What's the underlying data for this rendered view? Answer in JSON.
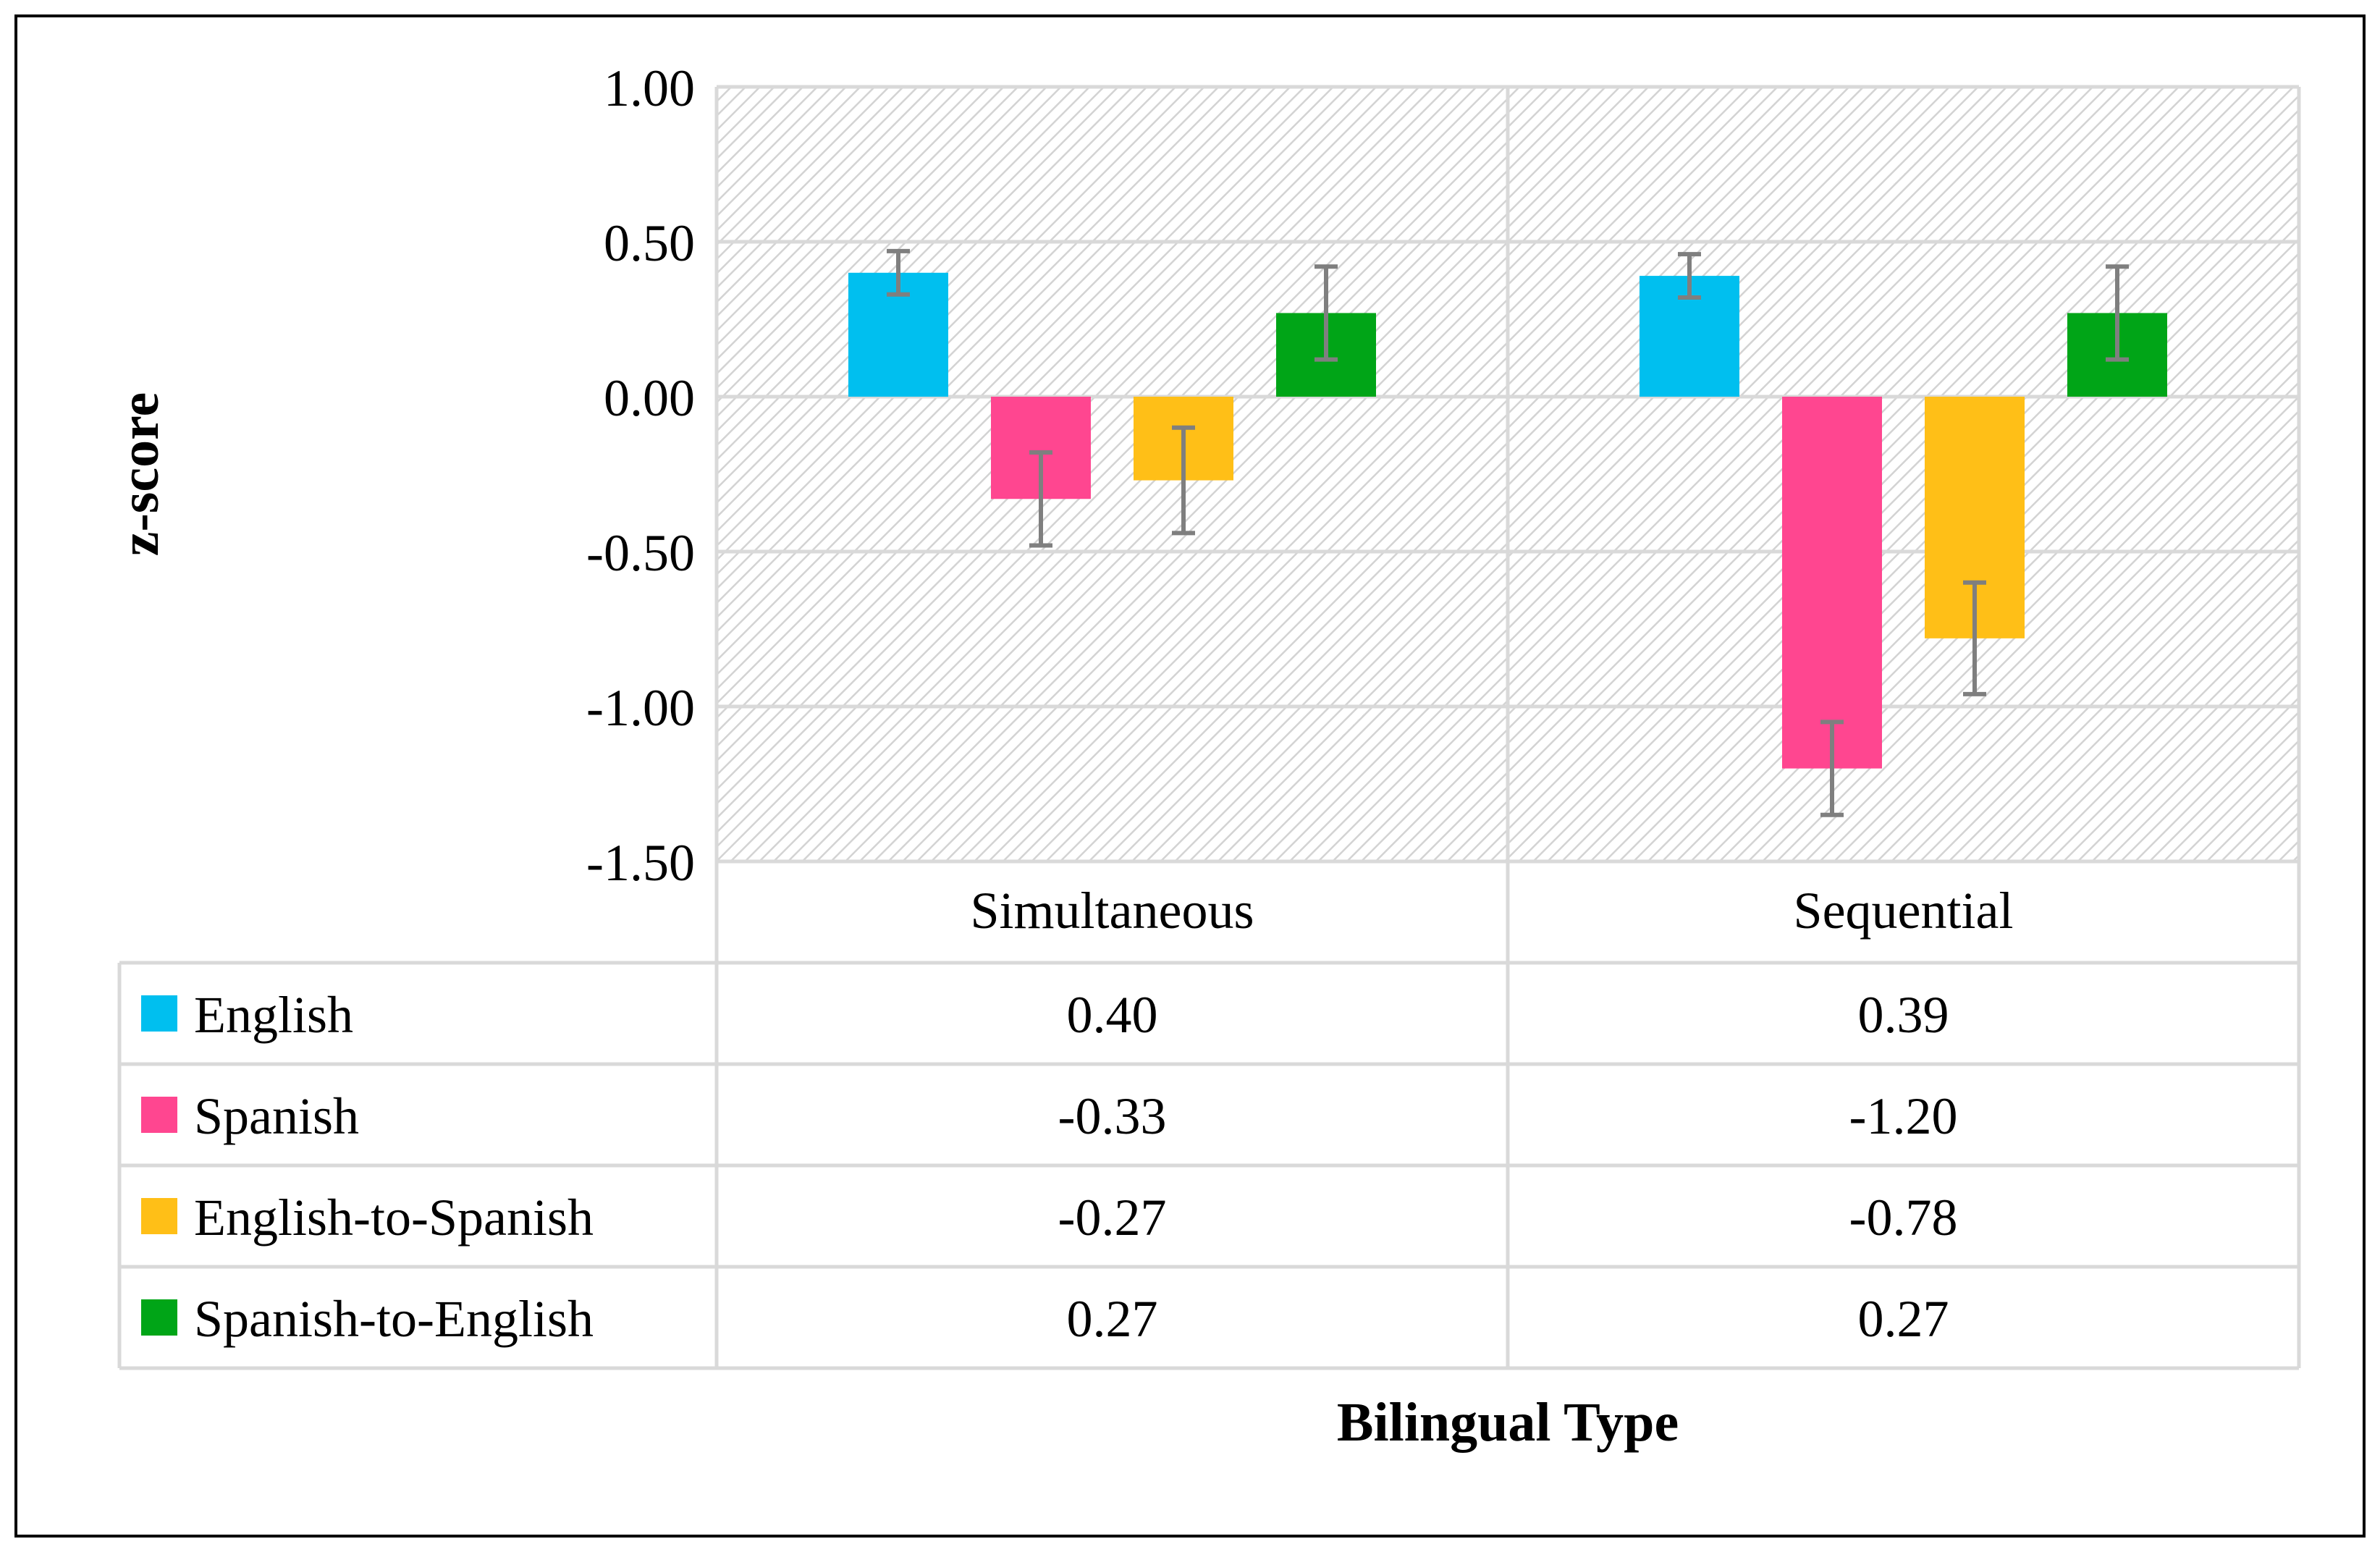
{
  "chart_data": {
    "type": "bar",
    "title": "",
    "xlabel": "Bilingual Type",
    "ylabel": "z-score",
    "ylim": [
      -1.5,
      1.0
    ],
    "yticks": [
      1.0,
      0.5,
      0.0,
      -0.5,
      -1.0,
      -1.5
    ],
    "ytick_labels": [
      "1.00",
      "0.50",
      "0.00",
      "-0.50",
      "-1.00",
      "-1.50"
    ],
    "categories": [
      "Simultaneous",
      "Sequential"
    ],
    "grid": true,
    "legend": "data-table",
    "series": [
      {
        "name": "English",
        "color": "#00BFEF",
        "values": [
          0.4,
          0.39
        ],
        "value_labels": [
          "0.40",
          "0.39"
        ],
        "error": [
          0.07,
          0.07
        ]
      },
      {
        "name": "Spanish",
        "color": "#FF4690",
        "values": [
          -0.33,
          -1.2
        ],
        "value_labels": [
          "-0.33",
          "-1.20"
        ],
        "error": [
          0.15,
          0.15
        ]
      },
      {
        "name": "English-to-Spanish",
        "color": "#FFBF17",
        "values": [
          -0.27,
          -0.78
        ],
        "value_labels": [
          "-0.27",
          "-0.78"
        ],
        "error": [
          0.17,
          0.18
        ]
      },
      {
        "name": "Spanish-to-English",
        "color": "#00A517",
        "values": [
          0.27,
          0.27
        ],
        "value_labels": [
          "0.27",
          "0.27"
        ],
        "error": [
          0.15,
          0.15
        ]
      }
    ]
  }
}
